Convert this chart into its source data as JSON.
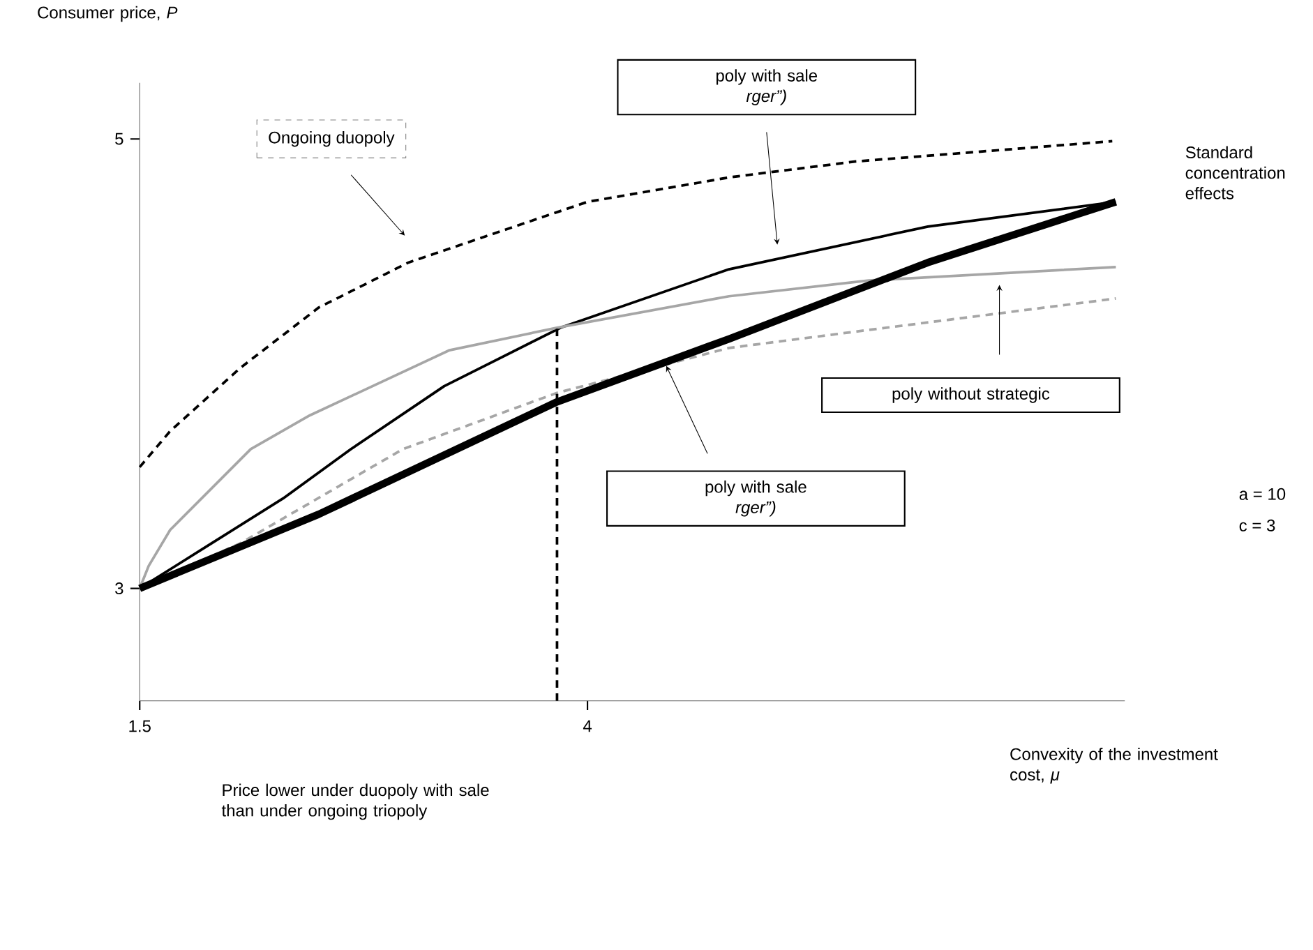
{
  "chart_data": {
    "type": "line",
    "xlabel": "Convexity of the investment cost, *μ*",
    "ylabel": "Consumer price, *P*",
    "xlim": [
      1.5,
      7
    ],
    "ylim": [
      2.5,
      5.25
    ],
    "xticks": [
      1.5,
      4
    ],
    "yticks": [
      3,
      5
    ],
    "grid": false,
    "series": [
      {
        "x": [
          1.5,
          1.67,
          2.06,
          2.5,
          3.0,
          4.0,
          4.8,
          5.5,
          6.93
        ],
        "values": [
          3.54,
          3.7,
          3.98,
          4.25,
          4.45,
          4.72,
          4.83,
          4.9,
          4.99
        ],
        "color": "#000000",
        "line_style": "dashed"
      },
      {
        "x": [
          1.5,
          1.9,
          2.3,
          2.68,
          3.2,
          3.85,
          4.79,
          5.9,
          6.95
        ],
        "values": [
          3,
          3.2,
          3.4,
          3.62,
          3.9,
          4.16,
          4.42,
          4.61,
          4.72
        ],
        "color": "#000000",
        "line_style": "solid"
      },
      {
        "x": [
          1.5,
          1.55,
          1.67,
          2.12,
          2.45,
          3.23,
          3.83,
          4.79,
          5.57,
          6.95
        ],
        "values": [
          3,
          3.1,
          3.26,
          3.62,
          3.77,
          4.06,
          4.16,
          4.3,
          4.37,
          4.43
        ],
        "color": "#a6a6a6",
        "line_style": "solid"
      },
      {
        "x": [
          1.5,
          2.06,
          2.97,
          3.83,
          4.79,
          5.57,
          6.95
        ],
        "values": [
          3,
          3.2,
          3.62,
          3.87,
          4.07,
          4.15,
          4.29
        ],
        "color": "#a6a6a6",
        "line_style": "dashed"
      },
      {
        "x": [
          1.5,
          2.5,
          3.83,
          4.79,
          5.9,
          6.95
        ],
        "values": [
          3,
          3.33,
          3.83,
          4.11,
          4.45,
          4.72
        ],
        "color": "#000000",
        "line_style": "solid"
      },
      {
        "x": [
          3.83,
          3.83
        ],
        "values": [
          2.5,
          4.16
        ],
        "color": "#000000",
        "line_style": "dashed"
      }
    ],
    "annotations": [
      "Ongoing duopoly",
      "poly with sale",
      "*rger”)*",
      "poly with sale",
      "*rger”)*",
      "poly without strategic",
      "Standard concentration effects",
      "a = 10",
      "c = 3",
      "Price lower under duopoly with sale than under ongoing triopoly"
    ]
  }
}
